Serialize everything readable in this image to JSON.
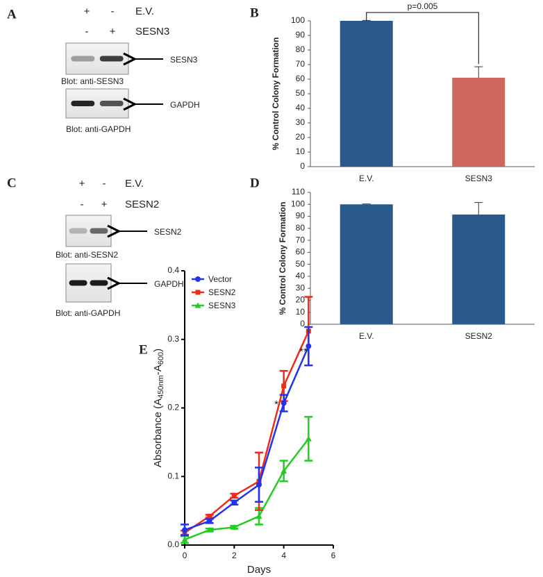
{
  "panels": [
    {
      "label": "A",
      "signs": [
        [
          "+",
          "-"
        ],
        [
          "-",
          "+"
        ]
      ],
      "conditions": [
        "E.V.",
        "SESN3"
      ],
      "targets": [
        "SESN3",
        "GAPDH"
      ],
      "blots": [
        "Blot: anti-SESN3",
        "Blot: anti-GAPDH"
      ]
    },
    {
      "label": "C",
      "signs": [
        [
          "+",
          "-"
        ],
        [
          "-",
          "+"
        ]
      ],
      "conditions": [
        "E.V.",
        "SESN2"
      ],
      "targets": [
        "SESN2",
        "GAPDH"
      ],
      "blots": [
        "Blot: anti-SESN2",
        "Blot: anti-GAPDH"
      ]
    }
  ],
  "chart_data": [
    {
      "type": "bar",
      "panel_label": "B",
      "ylabel": "% Control Colony Formation",
      "categories": [
        "E.V.",
        "SESN3"
      ],
      "values": [
        100,
        61
      ],
      "errors": [
        0.3,
        7.5
      ],
      "colors": [
        "#2a5a8c",
        "#cd665d"
      ],
      "ylim": [
        0,
        100
      ],
      "yticks": [
        0,
        10,
        20,
        30,
        40,
        50,
        60,
        70,
        80,
        90,
        100
      ],
      "annotation": "p=0.005"
    },
    {
      "type": "bar",
      "panel_label": "D",
      "ylabel": "% Control Colony Formation",
      "categories": [
        "E.V.",
        "SESN2"
      ],
      "values": [
        100,
        91.5
      ],
      "errors": [
        0.3,
        10
      ],
      "colors": [
        "#2a5a8c",
        "#2a5a8c"
      ],
      "ylim": [
        0,
        110
      ],
      "yticks": [
        0,
        10,
        20,
        30,
        40,
        50,
        60,
        70,
        80,
        90,
        100,
        110
      ]
    },
    {
      "type": "line",
      "panel_label": "E",
      "xlabel": "Days",
      "ylabel_parts": [
        "Absorbance (A",
        "450nm",
        "-A",
        "600",
        ")"
      ],
      "x": [
        0,
        1,
        2,
        3,
        4,
        5
      ],
      "xlim": [
        0,
        6
      ],
      "xticks": [
        0,
        2,
        4,
        6
      ],
      "ylim": [
        0,
        0.4
      ],
      "yticks": [
        {
          "value": 0,
          "label": "0.0"
        },
        0.1,
        0.2,
        0.3,
        0.4
      ],
      "series": [
        {
          "name": "Vector",
          "color": "#2233ee",
          "marker": "circle",
          "values": [
            0.022,
            0.035,
            0.062,
            0.088,
            0.207,
            0.29
          ],
          "errors": [
            0.008,
            0.003,
            0.003,
            0.025,
            0.012,
            0.028
          ]
        },
        {
          "name": "SESN2",
          "color": "#ee2a1a",
          "marker": "square",
          "values": [
            0.018,
            0.042,
            0.072,
            0.093,
            0.232,
            0.312
          ],
          "errors": [
            0.003,
            0.002,
            0.003,
            0.042,
            0.022,
            0.05
          ]
        },
        {
          "name": "SESN3",
          "color": "#22cc22",
          "marker": "triangle",
          "values": [
            0.008,
            0.022,
            0.026,
            0.042,
            0.108,
            0.155
          ],
          "errors": [
            0.005,
            0.002,
            0.002,
            0.012,
            0.015,
            0.032
          ]
        }
      ],
      "annotations": [
        "*",
        "**"
      ]
    }
  ]
}
